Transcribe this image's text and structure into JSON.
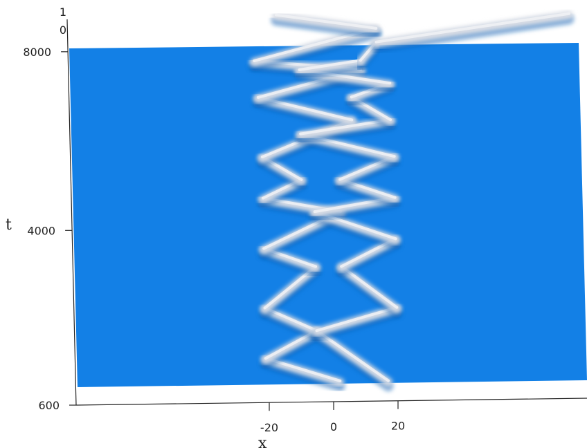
{
  "chart_data": {
    "type": "surface",
    "title": "",
    "xlabel": "x",
    "ylabel": "t",
    "zlabel": "",
    "x_ticks": [
      "-20",
      "0",
      "20"
    ],
    "y_ticks": [
      "600",
      "4000",
      "8000"
    ],
    "z_ticks": [
      "0",
      "1"
    ],
    "x_tick_values": [
      -20,
      0,
      20
    ],
    "y_tick_values": [
      600,
      4000,
      8000
    ],
    "z_tick_values": [
      0,
      1
    ],
    "xlim": [
      -82,
      100
    ],
    "ylim": [
      600,
      8500
    ],
    "zlim": [
      0,
      1
    ],
    "colors": {
      "surface_base": "#1380e6",
      "surface_peak": "#d8dce4",
      "axis": "#222222"
    },
    "description_free_data": {
      "left_solitons": [
        {
          "x": [
            2,
            -21
          ],
          "t": [
            600,
            1100
          ]
        },
        {
          "x": [
            -21,
            -5
          ],
          "t": [
            1100,
            1700
          ]
        },
        {
          "x": [
            -5,
            -21
          ],
          "t": [
            1700,
            2200
          ]
        },
        {
          "x": [
            -21,
            -5
          ],
          "t": [
            2200,
            3100
          ]
        },
        {
          "x": [
            -5,
            -21
          ],
          "t": [
            3100,
            3500
          ]
        },
        {
          "x": [
            -21,
            3
          ],
          "t": [
            3500,
            4300
          ]
        },
        {
          "x": [
            3,
            -21
          ],
          "t": [
            4300,
            4600
          ]
        },
        {
          "x": [
            -21,
            -9
          ],
          "t": [
            4600,
            5000
          ]
        },
        {
          "x": [
            -9,
            -21
          ],
          "t": [
            5000,
            5500
          ]
        },
        {
          "x": [
            -21,
            7
          ],
          "t": [
            5500,
            6300
          ]
        },
        {
          "x": [
            7,
            -22
          ],
          "t": [
            6300,
            6800
          ]
        },
        {
          "x": [
            -22,
            10
          ],
          "t": [
            6800,
            7400
          ]
        },
        {
          "x": [
            10,
            -23
          ],
          "t": [
            7400,
            7600
          ]
        },
        {
          "x": [
            -23,
            15
          ],
          "t": [
            7600,
            8300
          ]
        },
        {
          "x": [
            15,
            -16
          ],
          "t": [
            8300,
            8600
          ]
        }
      ],
      "right_solitons": [
        {
          "x": [
            17,
            -5
          ],
          "t": [
            600,
            1700
          ]
        },
        {
          "x": [
            -5,
            20
          ],
          "t": [
            1700,
            2200
          ]
        },
        {
          "x": [
            20,
            3
          ],
          "t": [
            2200,
            3100
          ]
        },
        {
          "x": [
            3,
            20
          ],
          "t": [
            3100,
            3700
          ]
        },
        {
          "x": [
            20,
            -5
          ],
          "t": [
            3700,
            4300
          ]
        },
        {
          "x": [
            -5,
            20
          ],
          "t": [
            4300,
            4600
          ]
        },
        {
          "x": [
            20,
            3
          ],
          "t": [
            4600,
            5000
          ]
        },
        {
          "x": [
            3,
            20
          ],
          "t": [
            5000,
            5500
          ]
        },
        {
          "x": [
            20,
            -9
          ],
          "t": [
            5500,
            6000
          ]
        },
        {
          "x": [
            -9,
            19
          ],
          "t": [
            6000,
            6300
          ]
        },
        {
          "x": [
            19,
            7
          ],
          "t": [
            6300,
            6800
          ]
        },
        {
          "x": [
            7,
            19
          ],
          "t": [
            6800,
            7100
          ]
        },
        {
          "x": [
            19,
            -9
          ],
          "t": [
            7100,
            7400
          ]
        },
        {
          "x": [
            -9,
            10
          ],
          "t": [
            7400,
            7600
          ]
        },
        {
          "x": [
            10,
            15
          ],
          "t": [
            7600,
            8000
          ]
        },
        {
          "x": [
            15,
            75
          ],
          "t": [
            8000,
            8600
          ]
        }
      ]
    }
  }
}
